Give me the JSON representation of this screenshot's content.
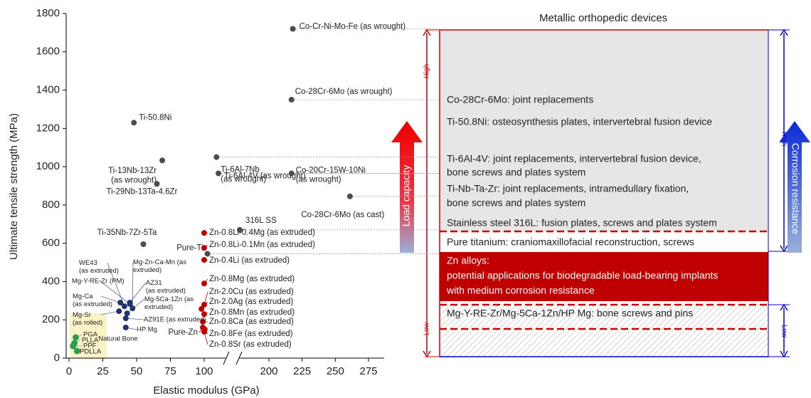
{
  "chart_data": {
    "type": "scatter",
    "x_label": "Elastic modulus (GPa)",
    "y_label": "Ultimate tensile strength (MPa)",
    "xlim": [
      -2,
      287
    ],
    "ylim": [
      0,
      1800
    ],
    "xticks": [
      0,
      25,
      50,
      75,
      100,
      200,
      225,
      250,
      275
    ],
    "yticks": [
      0,
      200,
      400,
      600,
      800,
      1000,
      1200,
      1400,
      1600,
      1800
    ],
    "series": [
      {
        "color": "#4d4d4d",
        "labels": [
          "Co-Cr-Ni-Mo-Fe (as wrought)",
          "Co-28Cr-6Mo (as wrought)",
          "Ti-50.8Ni",
          "Ti-13Nb-13Zr\n(as wrought)",
          "Ti-6Al-7Nb\n(as wrought)",
          "Ti-6Al-4V (as wrought)",
          "Co-20Cr-15W-10Ni\n(as wrought)",
          "Ti-29Nb-13Ta-4.6Zr",
          "Co-28Cr-6Mo (as cast)",
          "316L SS",
          "Ti-35Nb-7Zr-5Ta",
          "Pure-Ti"
        ],
        "x": [
          218,
          217,
          48,
          69,
          119,
          122,
          217,
          65,
          261,
          155,
          55,
          105
        ],
        "values": [
          1720,
          1350,
          1230,
          1033,
          1050,
          965,
          965,
          910,
          845,
          670,
          595,
          545
        ]
      },
      {
        "color": "#c00000",
        "labels": [
          "Zn-0.8Li-0.4Mg (as extruded)",
          "Zn-0.8Li-0.1Mn (as extruded)",
          "Zn-0.4Li (as extruded)",
          "Zn-0.8Mg (as extruded)",
          "Zn-2.0Cu (as extruded)",
          "Zn-2.0Ag (as extruded)",
          "Zn-0.8Mn (as extruded)",
          "Zn-0.8Ca (as extruded)",
          "Pure-Zn",
          "Zn-0.8Fe (as extruded)",
          "Zn-0.8Sr (as extruded)"
        ],
        "x": [
          100,
          100,
          100,
          100,
          100,
          98,
          100,
          99,
          99,
          101,
          100
        ],
        "values": [
          654,
          576,
          513,
          390,
          279,
          257,
          230,
          190,
          160,
          150,
          138
        ]
      },
      {
        "color": "#1f3370",
        "labels": [
          "WE43\n(as extruded)",
          "Mg-Y-RE-Zr (PM)",
          "Mg-Zn-Ca-Mn (as\nextruded)",
          "AZ31\n(as extruded)",
          "Mg-5Ca-1Zn (as\nextruded)",
          "Mg-Ca\n(as extruded)",
          "Mg-Sr\n(as rolled)",
          "AZ91E (as extruded)",
          "HP Mg"
        ],
        "x": [
          41,
          45,
          47,
          45,
          43,
          38,
          37,
          42,
          42
        ],
        "values": [
          271,
          283,
          260,
          290,
          234,
          290,
          245,
          208,
          160
        ]
      },
      {
        "color": "#2e9a4e",
        "labels": [
          "PGA",
          "PLLA",
          "PPF",
          "PDLLA"
        ],
        "x": [
          5,
          4,
          3,
          6
        ],
        "values": [
          108,
          78,
          63,
          37
        ]
      }
    ],
    "annotations": [
      "Natural Bone"
    ]
  },
  "panel": {
    "title": "Metallic orthopedic devices",
    "rows": [
      "Co-28Cr-6Mo: joint replacements",
      "Ti-50.8Ni: osteosynthesis plates, intervertebral fusion device",
      "Ti-6Al-4V: joint replacements, intervertebral fusion device,",
      "bone screws and plates system",
      "Ti-Nb-Ta-Zr: joint replacements, intramedullary fixation,",
      "bone screws and plates system",
      "Stainless steel 316L: fusion plates, screws and plates system",
      "Pure titanium: craniomaxillofacial reconstruction, screws"
    ],
    "zn": [
      "Zn alloys:",
      "potential applications for  biodegradable load-bearing implants",
      "with medium corrosion resistance"
    ],
    "mg": "Mg-Y-RE-Zr/Mg-5Ca-1Zn/HP Mg: bone screws and pins",
    "load": {
      "label": "Load capacity",
      "high": "High",
      "low": "Low"
    },
    "corrosion": {
      "label": "Corrosion resistance",
      "high": "High",
      "low": "Low"
    }
  }
}
